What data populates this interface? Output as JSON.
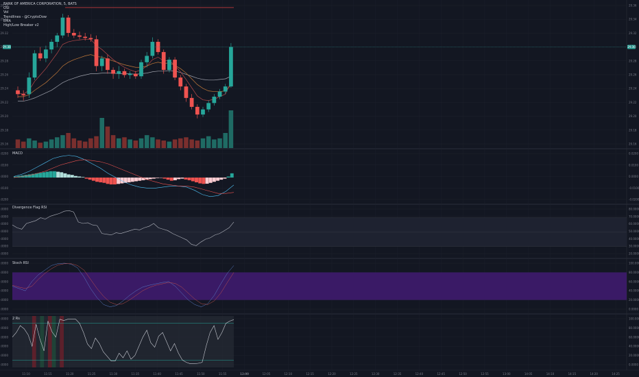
{
  "legend": {
    "symbol": "BANK OF AMERICA CORPORATION, 5, BATS",
    "lines": [
      "OSI",
      "Vol",
      "Trendlines - @CryptoDow",
      "EMA",
      "High/Low Breaker v2"
    ]
  },
  "panes": {
    "macd": "MACD",
    "rsi": "Divergence Flag RSI",
    "stoch": "Stoch RSI",
    "rsi2": "2 Rs"
  },
  "colors": {
    "background": "#131722",
    "up": "#26a69a",
    "down": "#ef5350",
    "purple_band": "#3a1a66",
    "grid": "#1e222d"
  },
  "chart_data": [
    {
      "type": "candlestick",
      "title": "BANK OF AMERICA CORPORATION, 5, BATS",
      "y_ticks": [
        "29.36",
        "29.34",
        "29.32",
        "29.30",
        "29.28",
        "29.26",
        "29.24",
        "29.22",
        "29.20",
        "29.18",
        "29.16"
      ],
      "last_price_label": "29.30",
      "ylim": [
        29.15,
        29.365
      ],
      "candles": [
        {
          "o": 29.232,
          "h": 29.238,
          "l": 29.22,
          "c": 29.226
        },
        {
          "o": 29.226,
          "h": 29.232,
          "l": 29.216,
          "c": 29.224
        },
        {
          "o": 29.226,
          "h": 29.26,
          "l": 29.22,
          "c": 29.252
        },
        {
          "o": 29.252,
          "h": 29.295,
          "l": 29.248,
          "c": 29.29
        },
        {
          "o": 29.29,
          "h": 29.3,
          "l": 29.278,
          "c": 29.282
        },
        {
          "o": 29.282,
          "h": 29.302,
          "l": 29.276,
          "c": 29.296
        },
        {
          "o": 29.296,
          "h": 29.312,
          "l": 29.29,
          "c": 29.308
        },
        {
          "o": 29.308,
          "h": 29.322,
          "l": 29.3,
          "c": 29.318
        },
        {
          "o": 29.318,
          "h": 29.352,
          "l": 29.314,
          "c": 29.346
        },
        {
          "o": 29.346,
          "h": 29.35,
          "l": 29.316,
          "c": 29.322
        },
        {
          "o": 29.322,
          "h": 29.328,
          "l": 29.314,
          "c": 29.318
        },
        {
          "o": 29.318,
          "h": 29.324,
          "l": 29.312,
          "c": 29.316
        },
        {
          "o": 29.316,
          "h": 29.322,
          "l": 29.31,
          "c": 29.314
        },
        {
          "o": 29.314,
          "h": 29.32,
          "l": 29.308,
          "c": 29.312
        },
        {
          "o": 29.312,
          "h": 29.318,
          "l": 29.262,
          "c": 29.27
        },
        {
          "o": 29.27,
          "h": 29.286,
          "l": 29.262,
          "c": 29.282
        },
        {
          "o": 29.282,
          "h": 29.288,
          "l": 29.258,
          "c": 29.264
        },
        {
          "o": 29.264,
          "h": 29.268,
          "l": 29.25,
          "c": 29.258
        },
        {
          "o": 29.258,
          "h": 29.27,
          "l": 29.25,
          "c": 29.262
        },
        {
          "o": 29.262,
          "h": 29.266,
          "l": 29.252,
          "c": 29.256
        },
        {
          "o": 29.256,
          "h": 29.262,
          "l": 29.25,
          "c": 29.258
        },
        {
          "o": 29.258,
          "h": 29.262,
          "l": 29.25,
          "c": 29.254
        },
        {
          "o": 29.254,
          "h": 29.28,
          "l": 29.25,
          "c": 29.276
        },
        {
          "o": 29.276,
          "h": 29.292,
          "l": 29.268,
          "c": 29.286
        },
        {
          "o": 29.286,
          "h": 29.315,
          "l": 29.282,
          "c": 29.308
        },
        {
          "o": 29.308,
          "h": 29.312,
          "l": 29.288,
          "c": 29.292
        },
        {
          "o": 29.292,
          "h": 29.296,
          "l": 29.258,
          "c": 29.264
        },
        {
          "o": 29.264,
          "h": 29.284,
          "l": 29.26,
          "c": 29.28
        },
        {
          "o": 29.28,
          "h": 29.284,
          "l": 29.248,
          "c": 29.252
        },
        {
          "o": 29.252,
          "h": 29.256,
          "l": 29.232,
          "c": 29.238
        },
        {
          "o": 29.238,
          "h": 29.242,
          "l": 29.214,
          "c": 29.22
        },
        {
          "o": 29.22,
          "h": 29.226,
          "l": 29.202,
          "c": 29.206
        },
        {
          "o": 29.206,
          "h": 29.21,
          "l": 29.188,
          "c": 29.194
        },
        {
          "o": 29.194,
          "h": 29.206,
          "l": 29.19,
          "c": 29.202
        },
        {
          "o": 29.202,
          "h": 29.216,
          "l": 29.198,
          "c": 29.212
        },
        {
          "o": 29.212,
          "h": 29.226,
          "l": 29.208,
          "c": 29.222
        },
        {
          "o": 29.222,
          "h": 29.234,
          "l": 29.218,
          "c": 29.23
        },
        {
          "o": 29.23,
          "h": 29.242,
          "l": 29.226,
          "c": 29.238
        },
        {
          "o": 29.238,
          "h": 29.306,
          "l": 29.236,
          "c": 29.3
        }
      ],
      "ema_fast": [
        29.228,
        29.226,
        29.232,
        29.246,
        29.256,
        29.266,
        29.278,
        29.29,
        29.304,
        29.308,
        29.31,
        29.311,
        29.312,
        29.312,
        29.302,
        29.296,
        29.288,
        29.28,
        29.274,
        29.268,
        29.264,
        29.261,
        29.264,
        29.27,
        29.28,
        29.284,
        29.278,
        29.279,
        29.271,
        29.261,
        29.249,
        29.236,
        29.223,
        29.217,
        29.216,
        29.218,
        29.222,
        29.226,
        29.245
      ],
      "ema_mid": [
        29.222,
        29.222,
        29.225,
        29.232,
        29.238,
        29.244,
        29.252,
        29.26,
        29.27,
        29.276,
        29.28,
        29.283,
        29.286,
        29.288,
        29.285,
        29.284,
        29.281,
        29.278,
        29.275,
        29.272,
        29.27,
        29.268,
        29.268,
        29.27,
        29.274,
        29.276,
        29.274,
        29.275,
        29.271,
        29.266,
        29.259,
        29.25,
        29.241,
        29.235,
        29.231,
        29.23,
        29.23,
        29.231,
        29.24
      ],
      "ema_slow": [
        29.215,
        29.215,
        29.217,
        29.22,
        29.224,
        29.228,
        29.232,
        29.238,
        29.244,
        29.248,
        29.251,
        29.254,
        29.256,
        29.258,
        29.258,
        29.259,
        29.259,
        29.259,
        29.258,
        29.258,
        29.258,
        29.257,
        29.258,
        29.259,
        29.261,
        29.262,
        29.262,
        29.263,
        29.262,
        29.26,
        29.257,
        29.254,
        29.251,
        29.249,
        29.248,
        29.248,
        29.249,
        29.25,
        29.254
      ],
      "volume": [
        8,
        6,
        9,
        7,
        5,
        6,
        8,
        10,
        12,
        14,
        9,
        7,
        6,
        9,
        11,
        28,
        20,
        12,
        9,
        10,
        8,
        7,
        9,
        12,
        10,
        8,
        7,
        6,
        8,
        9,
        10,
        8,
        7,
        9,
        11,
        8,
        9,
        14,
        35
      ]
    },
    {
      "type": "macd",
      "title": "MACD",
      "y_ticks": [
        "0.0200",
        "0.0100",
        "0.0000",
        "-0.0100",
        "-0.0200"
      ],
      "ylim": [
        -0.022,
        0.024
      ],
      "histogram": [
        0.001,
        0.0015,
        0.002,
        0.0025,
        0.003,
        0.0035,
        0.004,
        0.0045,
        0.005,
        0.0055,
        0.006,
        0.006,
        0.0055,
        0.005,
        0.004,
        0.003,
        0.0025,
        0.0015,
        0.001,
        0.0005,
        -0.001,
        -0.002,
        -0.003,
        -0.004,
        -0.0045,
        -0.005,
        -0.006,
        -0.0065,
        -0.0065,
        -0.006,
        -0.0055,
        -0.005,
        -0.0045,
        -0.004,
        -0.0035,
        -0.003,
        -0.0025,
        -0.002,
        -0.0015,
        -0.001,
        -0.0005,
        -0.0002,
        -0.001,
        -0.002,
        -0.003,
        -0.0025,
        -0.0015,
        -0.001,
        -0.0018,
        -0.0025,
        -0.0035,
        -0.0045,
        -0.0055,
        -0.006,
        -0.0058,
        -0.005,
        -0.004,
        -0.003,
        -0.002,
        -0.001,
        0.001,
        0.004
      ],
      "macd_line": [
        0.001,
        0.003,
        0.006,
        0.01,
        0.014,
        0.018,
        0.02,
        0.021,
        0.02,
        0.017,
        0.013,
        0.009,
        0.004,
        0.0,
        -0.004,
        -0.007,
        -0.009,
        -0.01,
        -0.01,
        -0.009,
        -0.008,
        -0.008,
        -0.009,
        -0.012,
        -0.016,
        -0.018,
        -0.017,
        -0.013,
        -0.007
      ],
      "signal_line": [
        0.0,
        0.001,
        0.002,
        0.004,
        0.006,
        0.009,
        0.012,
        0.014,
        0.016,
        0.017,
        0.016,
        0.015,
        0.013,
        0.01,
        0.007,
        0.004,
        0.001,
        -0.002,
        -0.004,
        -0.006,
        -0.007,
        -0.008,
        -0.008,
        -0.009,
        -0.011,
        -0.013,
        -0.015,
        -0.015,
        -0.014
      ]
    },
    {
      "type": "line",
      "title": "Divergence Flag RSI",
      "y_ticks": [
        "80.0000",
        "70.0000",
        "60.0000",
        "50.0000",
        "40.0000",
        "30.0000",
        "20.0000"
      ],
      "ylim": [
        18,
        84
      ],
      "levels": [
        70,
        50,
        30
      ],
      "values": [
        60,
        56,
        54,
        62,
        64,
        66,
        70,
        68,
        72,
        74,
        76,
        79,
        80,
        78,
        64,
        62,
        63,
        60,
        59,
        48,
        47,
        46,
        49,
        48,
        50,
        52,
        54,
        53,
        56,
        58,
        62,
        56,
        54,
        52,
        48,
        45,
        42,
        39,
        33,
        31,
        36,
        40,
        42,
        46,
        48,
        52,
        56,
        64
      ]
    },
    {
      "type": "line",
      "title": "Stoch RSI",
      "y_ticks": [
        "100.0000",
        "80.0000",
        "60.0000",
        "40.0000",
        "20.0000",
        "0.0000"
      ],
      "ylim": [
        0,
        100
      ],
      "band": [
        20,
        80
      ],
      "k_values": [
        50,
        45,
        40,
        60,
        75,
        85,
        95,
        99,
        100,
        98,
        90,
        70,
        45,
        25,
        10,
        5,
        8,
        18,
        30,
        40,
        48,
        52,
        55,
        58,
        60,
        50,
        35,
        20,
        10,
        5,
        12,
        30,
        55,
        78,
        95
      ],
      "d_values": [
        52,
        48,
        45,
        50,
        65,
        78,
        88,
        96,
        99,
        99,
        95,
        85,
        65,
        45,
        28,
        15,
        10,
        12,
        20,
        30,
        40,
        47,
        52,
        55,
        58,
        56,
        48,
        35,
        22,
        12,
        10,
        18,
        35,
        58,
        80
      ]
    },
    {
      "type": "line",
      "title": "2 Rs",
      "y_ticks": [
        "100.0000",
        "80.0000",
        "60.0000",
        "40.0000",
        "20.0000",
        "0.0000"
      ],
      "ylim": [
        0,
        100
      ],
      "levels": [
        90,
        10
      ],
      "values": [
        60,
        70,
        85,
        78,
        65,
        40,
        88,
        55,
        30,
        95,
        72,
        60,
        99,
        96,
        99,
        99,
        99,
        90,
        70,
        45,
        35,
        58,
        46,
        28,
        18,
        8,
        8,
        25,
        15,
        30,
        12,
        20,
        40,
        60,
        75,
        48,
        38,
        62,
        70,
        50,
        30,
        46,
        25,
        10,
        5,
        2,
        2,
        3,
        5,
        40,
        70,
        85,
        55,
        70,
        90,
        95,
        98
      ],
      "red_bands": [
        [
          5,
          6
        ],
        [
          9,
          10
        ],
        [
          12,
          13
        ]
      ],
      "green_bands": [
        [
          7,
          8
        ],
        [
          10,
          11
        ]
      ]
    }
  ],
  "time_axis": [
    "11:10",
    "11:15",
    "11:20",
    "11:25",
    "11:30",
    "11:35",
    "11:40",
    "11:45",
    "11:50",
    "11:55",
    "12:00",
    "12:05",
    "12:10",
    "12:15",
    "12:20",
    "12:25",
    "12:30",
    "12:35",
    "12:40",
    "12:45",
    "12:50",
    "12:55",
    "13:00",
    "14:05",
    "14:10",
    "14:15",
    "14:20",
    "14:25"
  ],
  "time_highlight": "12:00"
}
